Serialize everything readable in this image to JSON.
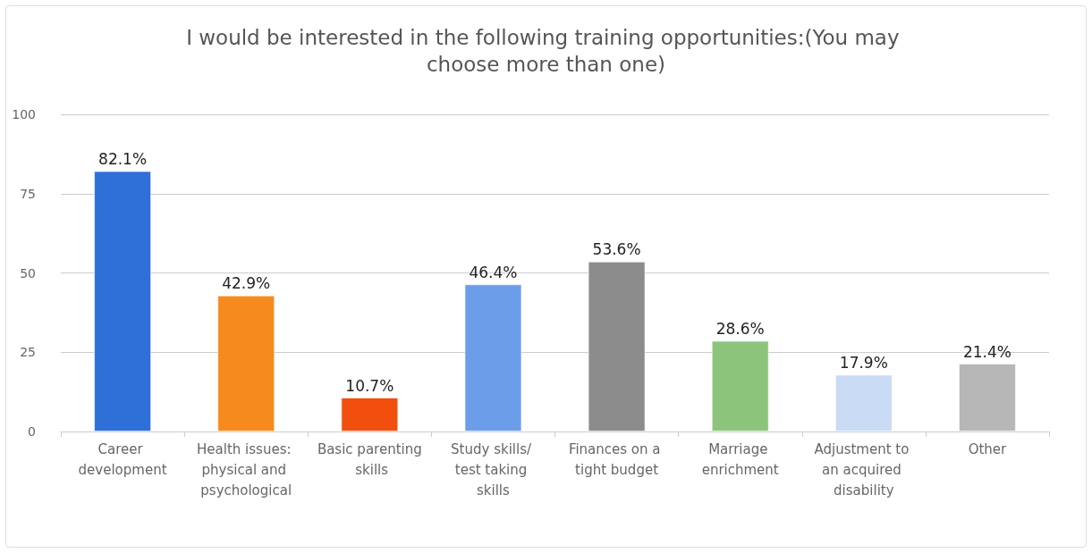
{
  "chart_data": {
    "type": "bar",
    "title": "I would be interested in the following training opportunities:(You may choose more than one)",
    "categories": [
      "Career development",
      "Health issues: physical and psychological",
      "Basic parenting skills",
      "Study skills/ test taking skills",
      "Finances on a tight budget",
      "Marriage enrichment",
      "Adjustment to an acquired disability",
      "Other"
    ],
    "values": [
      82.1,
      42.9,
      10.7,
      46.4,
      53.6,
      28.6,
      17.9,
      21.4
    ],
    "colors": [
      "#2e6fd8",
      "#f78a1c",
      "#f24f0e",
      "#6c9de9",
      "#8c8c8c",
      "#8dc47c",
      "#c9dbf5",
      "#b7b7b7"
    ],
    "value_labels": [
      "82.1%",
      "42.9%",
      "10.7%",
      "46.4%",
      "53.6%",
      "28.6%",
      "17.9%",
      "21.4%"
    ],
    "ylim": [
      0,
      100
    ],
    "yticks": [
      0,
      25,
      50,
      75,
      100
    ],
    "grid": "y"
  }
}
